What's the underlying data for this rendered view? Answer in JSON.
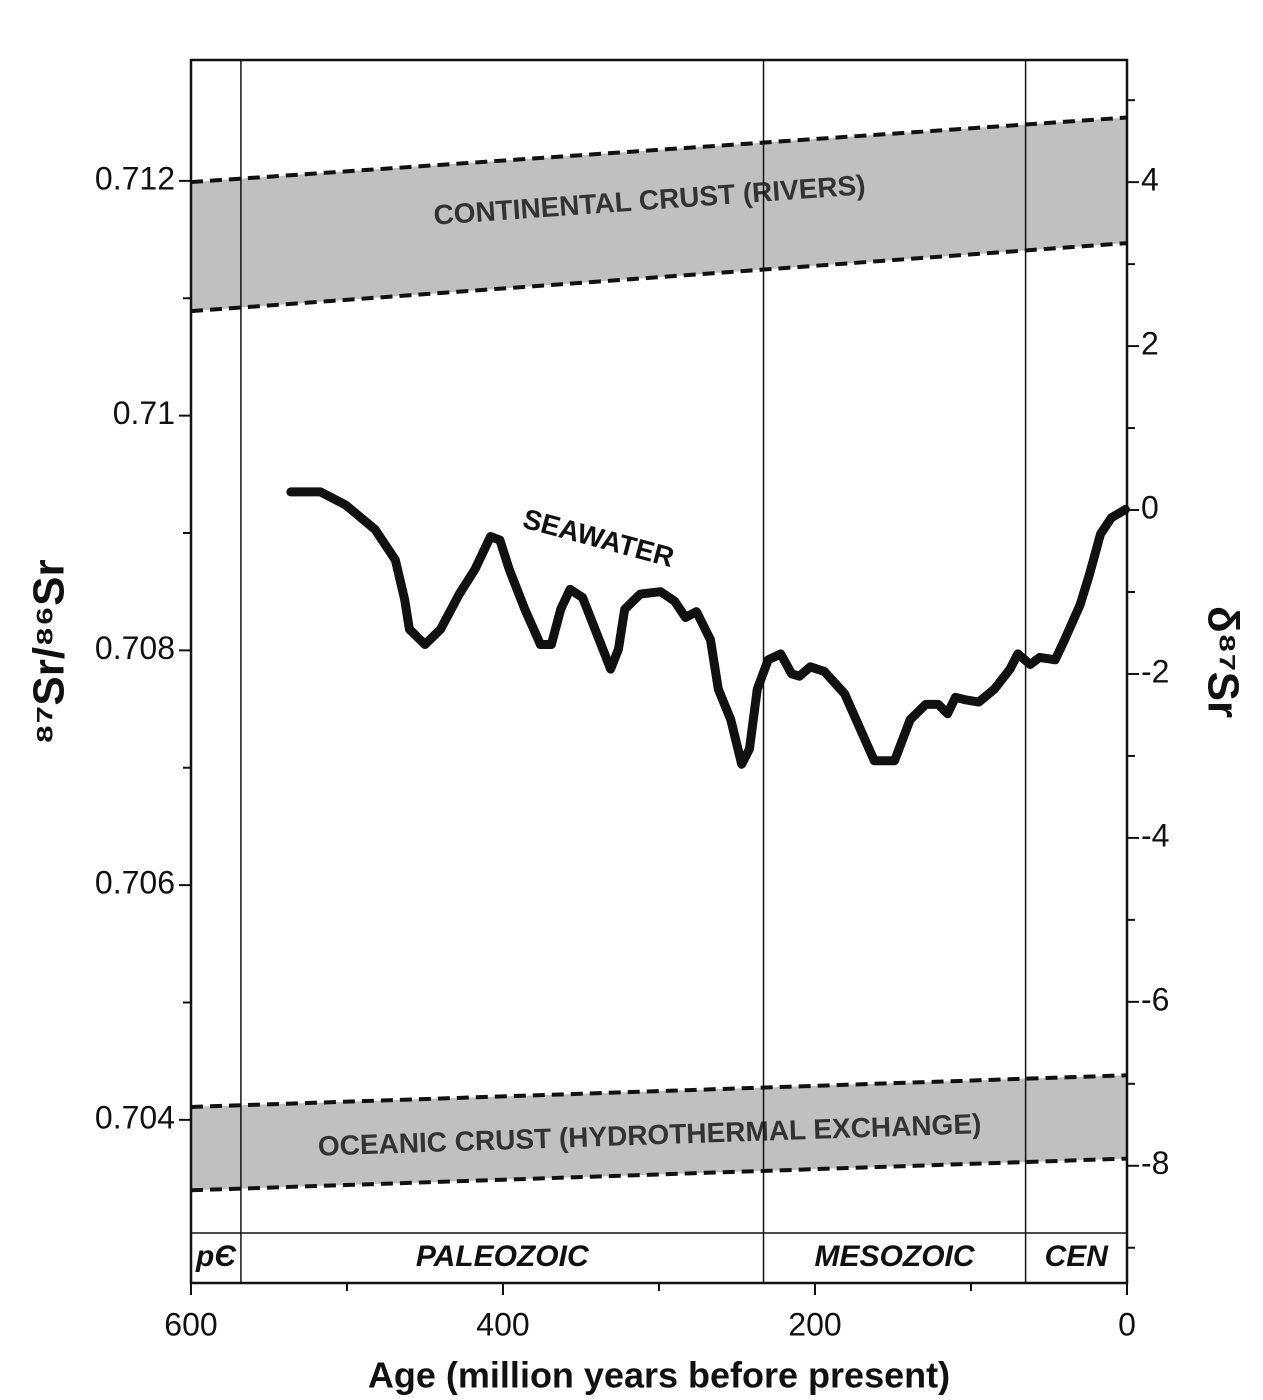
{
  "chart_data": {
    "type": "line",
    "x_label": "Age (million years before present)",
    "y_label": "⁸⁷Sr/⁸⁶Sr",
    "y2_label": "δ⁸⁷Sr",
    "xlim": [
      600,
      0
    ],
    "xticks": [
      600,
      400,
      200,
      0
    ],
    "xminor": [
      500,
      300,
      100
    ],
    "ylim": [
      0.70261,
      0.71303
    ],
    "yticks": [
      0.704,
      0.706,
      0.708,
      0.71,
      0.712
    ],
    "yminor": [
      0.705,
      0.707,
      0.709,
      0.711
    ],
    "y2lim": [
      -9.43,
      5.49
    ],
    "y2ticks": [
      -8,
      -6,
      -4,
      -2,
      0,
      2,
      4
    ],
    "y2minor": [
      -9,
      -7,
      -5,
      -3,
      -1,
      1,
      3,
      5
    ],
    "series": [
      {
        "name": "SEAWATER",
        "color": "#111111",
        "x": [
          536,
          517,
          501,
          482,
          469,
          463,
          460,
          450,
          440,
          428,
          418,
          408,
          402,
          396,
          386,
          376,
          369,
          363,
          357,
          349,
          341,
          331,
          326,
          322,
          312,
          299,
          290,
          283,
          276,
          267,
          262,
          254,
          247,
          242,
          237,
          230,
          222,
          215,
          210,
          203,
          194,
          181,
          171,
          162,
          149,
          139,
          129,
          121,
          115,
          110,
          104,
          95,
          85,
          75,
          70,
          62,
          56,
          46,
          40,
          30,
          24,
          17,
          10,
          1
        ],
        "values": [
          0.70935,
          0.70935,
          0.70924,
          0.70903,
          0.70877,
          0.70843,
          0.70818,
          0.70805,
          0.70818,
          0.70848,
          0.70869,
          0.70897,
          0.70894,
          0.70869,
          0.70835,
          0.70805,
          0.70805,
          0.70835,
          0.70852,
          0.70845,
          0.70818,
          0.70784,
          0.70801,
          0.70835,
          0.70848,
          0.7085,
          0.70842,
          0.70828,
          0.70833,
          0.70809,
          0.70767,
          0.70741,
          0.70703,
          0.70716,
          0.70767,
          0.70792,
          0.70797,
          0.7078,
          0.70778,
          0.70786,
          0.70782,
          0.70763,
          0.70733,
          0.70706,
          0.70706,
          0.70741,
          0.70754,
          0.70754,
          0.70746,
          0.7076,
          0.70758,
          0.70756,
          0.70767,
          0.70784,
          0.70797,
          0.70788,
          0.70794,
          0.70792,
          0.70809,
          0.70839,
          0.70865,
          0.70899,
          0.70913,
          0.7092
        ]
      }
    ],
    "bands": [
      {
        "label": "CONTINENTAL CRUST (RIVERS)",
        "color": "#b5b5b5",
        "x": [
          600,
          0
        ],
        "upper": [
          0.71199,
          0.71254
        ],
        "lower": [
          0.71089,
          0.71147
        ]
      },
      {
        "label": "OCEANIC CRUST (HYDROTHERMAL EXCHANGE)",
        "color": "#b5b5b5",
        "x": [
          600,
          0
        ],
        "upper": [
          0.70411,
          0.70438
        ],
        "lower": [
          0.7034,
          0.70367
        ]
      }
    ],
    "era_boundaries": [
      568,
      233,
      65
    ],
    "eras": [
      "pЄ",
      "PALEOZOIC",
      "MESOZOIC",
      "CEN"
    ]
  }
}
